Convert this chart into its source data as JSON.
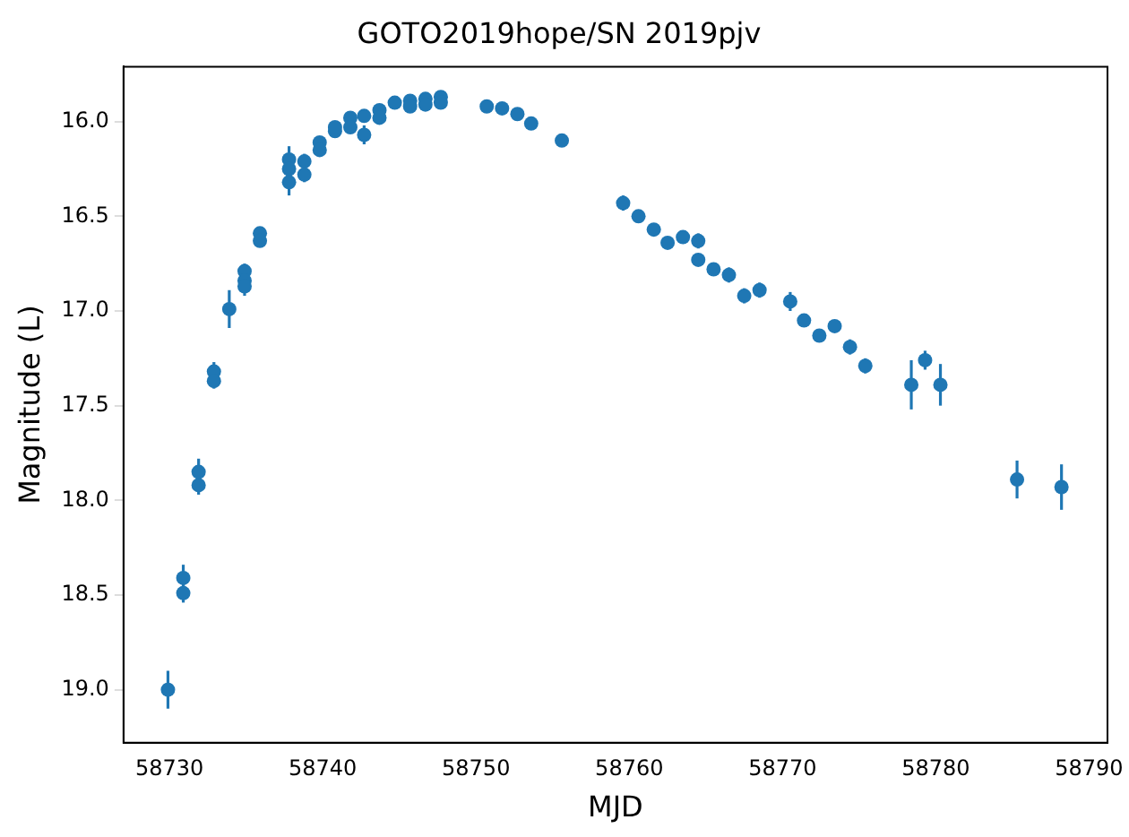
{
  "chart_data": {
    "type": "scatter",
    "title": "GOTO2019hope/SN 2019pjv",
    "xlabel": "MJD",
    "ylabel": "Magnitude (L)",
    "series": [
      {
        "color": "#1f77b4",
        "x": [
          58729.9,
          58730.9,
          58730.9,
          58731.9,
          58731.9,
          58732.9,
          58732.9,
          58733.9,
          58734.9,
          58734.9,
          58734.9,
          58735.9,
          58735.9,
          58737.8,
          58737.8,
          58737.8,
          58738.8,
          58738.8,
          58739.8,
          58739.8,
          58740.8,
          58740.8,
          58741.8,
          58741.8,
          58742.7,
          58742.7,
          58743.7,
          58743.7,
          58744.7,
          58745.7,
          58745.7,
          58746.7,
          58746.7,
          58747.7,
          58747.7,
          58750.7,
          58751.7,
          58752.7,
          58753.6,
          58755.6,
          58759.6,
          58760.6,
          58761.6,
          58762.5,
          58763.5,
          58764.5,
          58764.5,
          58765.5,
          58766.5,
          58767.5,
          58768.5,
          58770.5,
          58771.4,
          58772.4,
          58773.4,
          58774.4,
          58775.4,
          58778.4,
          58779.3,
          58780.3,
          58785.3,
          58788.2
        ],
        "values": [
          19.0,
          18.41,
          18.49,
          17.85,
          17.92,
          17.32,
          17.37,
          16.99,
          16.79,
          16.84,
          16.87,
          16.59,
          16.63,
          16.2,
          16.25,
          16.32,
          16.21,
          16.28,
          16.11,
          16.15,
          16.05,
          16.03,
          15.98,
          16.03,
          15.97,
          16.07,
          15.94,
          15.98,
          15.9,
          15.89,
          15.92,
          15.88,
          15.91,
          15.87,
          15.9,
          15.92,
          15.93,
          15.96,
          16.01,
          16.1,
          16.43,
          16.5,
          16.57,
          16.64,
          16.61,
          16.63,
          16.73,
          16.78,
          16.81,
          16.92,
          16.89,
          16.95,
          17.05,
          17.13,
          17.08,
          17.19,
          17.29,
          17.39,
          17.26,
          17.39,
          17.89,
          17.93
        ],
        "errors": [
          0.1,
          0.07,
          0.05,
          0.07,
          0.05,
          0.05,
          0.04,
          0.1,
          0.04,
          0.04,
          0.05,
          0.03,
          0.03,
          0.07,
          0.04,
          0.07,
          0.04,
          0.04,
          0.03,
          0.03,
          0.03,
          0.03,
          0.03,
          0.03,
          0.03,
          0.05,
          0.03,
          0.03,
          0.02,
          0.02,
          0.02,
          0.02,
          0.02,
          0.02,
          0.02,
          0.02,
          0.02,
          0.02,
          0.02,
          0.03,
          0.04,
          0.03,
          0.03,
          0.03,
          0.03,
          0.04,
          0.03,
          0.03,
          0.04,
          0.04,
          0.04,
          0.05,
          0.03,
          0.03,
          0.03,
          0.04,
          0.04,
          0.13,
          0.05,
          0.11,
          0.1,
          0.12
        ]
      }
    ],
    "xlim": [
      58727.0,
      58791.2
    ],
    "xticks": [
      58730,
      58740,
      58750,
      58760,
      58770,
      58780,
      58790
    ],
    "ylim": [
      19.28,
      15.71
    ],
    "yticks": [
      {
        "value": 16,
        "label": "16.0"
      },
      {
        "value": 16.5,
        "label": "16.5"
      },
      {
        "value": 17,
        "label": "17.0"
      },
      {
        "value": 17.5,
        "label": "17.5"
      },
      {
        "value": 18,
        "label": "18.0"
      },
      {
        "value": 18.5,
        "label": "18.5"
      },
      {
        "value": 19,
        "label": "19.0"
      }
    ],
    "marker": "circle",
    "grid": false,
    "legend": false
  }
}
